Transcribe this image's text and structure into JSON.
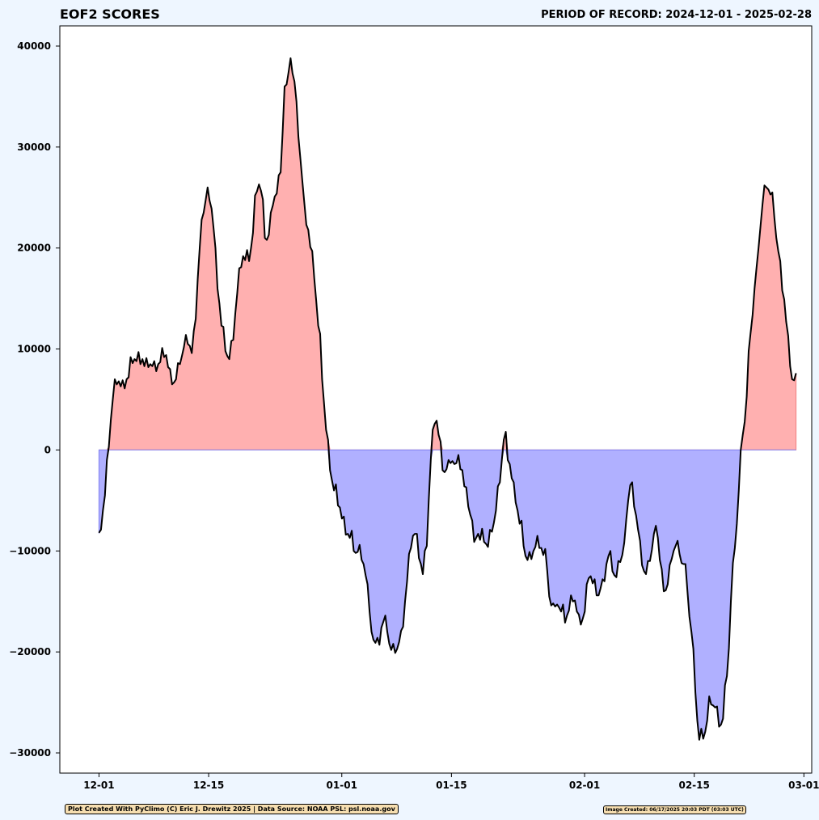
{
  "chart_data": {
    "type": "area",
    "title": "EOF2 SCORES",
    "subtitle": "PERIOD OF RECORD: 2024-12-01 - 2025-02-28",
    "xlabel": "",
    "ylabel": "",
    "x_start": "2024-12-01",
    "x_end": "2025-02-28",
    "xlim": [
      "2024-11-26",
      "2025-03-02"
    ],
    "ylim": [
      -32000,
      42000
    ],
    "x_ticks": [
      "12-01",
      "12-15",
      "01-01",
      "01-15",
      "02-01",
      "02-15",
      "03-01"
    ],
    "x_tick_dates": [
      "2024-12-01",
      "2024-12-15",
      "2025-01-01",
      "2025-01-15",
      "2025-02-01",
      "2025-02-15",
      "2025-03-01"
    ],
    "y_ticks": [
      -30000,
      -20000,
      -10000,
      0,
      10000,
      20000,
      30000,
      40000
    ],
    "y_tick_labels": [
      "−30000",
      "−20000",
      "−10000",
      "0",
      "10000",
      "20000",
      "30000",
      "40000"
    ],
    "grid": false,
    "series": [
      {
        "line_color": "#000000",
        "positive_fill": "#ffb0b0",
        "negative_fill": "#b0b0ff",
        "sampling": "6-hourly",
        "values": [
          -8200,
          -7900,
          -6000,
          -4500,
          -1000,
          300,
          3000,
          5000,
          7000,
          6500,
          6800,
          6300,
          6900,
          6100,
          7000,
          7200,
          9200,
          8600,
          9000,
          8800,
          9700,
          8500,
          9000,
          8300,
          9100,
          8200,
          8500,
          8300,
          8800,
          7800,
          8500,
          8700,
          10100,
          9200,
          9400,
          8200,
          8000,
          6500,
          6700,
          7000,
          8600,
          8500,
          9300,
          10200,
          11400,
          10500,
          10300,
          9600,
          11800,
          13000,
          17000,
          20000,
          22800,
          23500,
          24700,
          26000,
          24700,
          23900,
          22000,
          20000,
          16000,
          14500,
          12300,
          12200,
          9800,
          9300,
          9000,
          10800,
          10900,
          13500,
          15500,
          18000,
          18100,
          19200,
          18800,
          19800,
          18700,
          20000,
          21500,
          25200,
          25600,
          26300,
          25700,
          24800,
          21000,
          20800,
          21300,
          23500,
          24200,
          25100,
          25400,
          27200,
          27500,
          31500,
          36000,
          36200,
          37400,
          38800,
          37300,
          36500,
          34500,
          31000,
          28800,
          26600,
          24400,
          22300,
          21800,
          20100,
          19700,
          17000,
          14800,
          12300,
          11500,
          7000,
          4500,
          2000,
          1000,
          -2000,
          -3000,
          -4000,
          -3400,
          -5500,
          -5700,
          -6800,
          -6600,
          -8400,
          -8300,
          -8700,
          -8000,
          -10000,
          -10200,
          -10100,
          -9400,
          -10900,
          -11300,
          -12400,
          -13300,
          -16000,
          -18000,
          -18800,
          -19100,
          -18600,
          -19300,
          -17600,
          -17000,
          -16400,
          -18000,
          -19200,
          -19800,
          -19200,
          -20100,
          -19700,
          -19000,
          -17900,
          -17500,
          -15000,
          -13000,
          -10300,
          -9700,
          -8500,
          -8300,
          -8300,
          -10700,
          -11300,
          -12300,
          -10000,
          -9500,
          -5000,
          -1000,
          2000,
          2600,
          2900,
          1500,
          800,
          -2000,
          -2200,
          -1900,
          -1000,
          -1300,
          -1100,
          -1400,
          -1300,
          -500,
          -1900,
          -2000,
          -3600,
          -3700,
          -5600,
          -6400,
          -7000,
          -9100,
          -8700,
          -8300,
          -8900,
          -7800,
          -9100,
          -9300,
          -9600,
          -7900,
          -8100,
          -7200,
          -6000,
          -3600,
          -3200,
          -1000,
          1000,
          1800,
          -1000,
          -1400,
          -2800,
          -3200,
          -5200,
          -6000,
          -7300,
          -7000,
          -9500,
          -10500,
          -10900,
          -10100,
          -10800,
          -10000,
          -9600,
          -8500,
          -9700,
          -9700,
          -10400,
          -9800,
          -12000,
          -14500,
          -15400,
          -15200,
          -15500,
          -15300,
          -15600,
          -16000,
          -15300,
          -17100,
          -16400,
          -15900,
          -14400,
          -15000,
          -14900,
          -16000,
          -16300,
          -17300,
          -16700,
          -16000,
          -13300,
          -12700,
          -12500,
          -13200,
          -12800,
          -14400,
          -14400,
          -13700,
          -12800,
          -13000,
          -11300,
          -10500,
          -10000,
          -12000,
          -12400,
          -12600,
          -11000,
          -11100,
          -10400,
          -9200,
          -6900,
          -5000,
          -3500,
          -3200,
          -5600,
          -6500,
          -7900,
          -9000,
          -11400,
          -12000,
          -12300,
          -11000,
          -11000,
          -9900,
          -8300,
          -7500,
          -8700,
          -10900,
          -11800,
          -14000,
          -13900,
          -13300,
          -11400,
          -10800,
          -10000,
          -9500,
          -9000,
          -10300,
          -11200,
          -11300,
          -11300,
          -14000,
          -16500,
          -18000,
          -19700,
          -24000,
          -26800,
          -28700,
          -27600,
          -28600,
          -27900,
          -26800,
          -24400,
          -25200,
          -25300,
          -25500,
          -25400,
          -27400,
          -27200,
          -26600,
          -23300,
          -22400,
          -19600,
          -15000,
          -11200,
          -9700,
          -7300,
          -4000,
          0,
          1500,
          2800,
          5300,
          9800,
          11600,
          13400,
          16000,
          18100,
          20000,
          22200,
          24300,
          26200,
          26000,
          25800,
          25300,
          25500,
          23000,
          21000,
          19700,
          18700,
          15800,
          14900,
          12700,
          11300,
          8300,
          7000,
          6900,
          7600
        ]
      }
    ]
  },
  "footer": {
    "credit": "Plot Created With PyClimo (C) Eric J. Drewitz 2025 | Data Source: NOAA PSL: psl.noaa.gov",
    "image_created": "Image Created: 06/17/2025 20:03 PDT (03:03 UTC)"
  }
}
